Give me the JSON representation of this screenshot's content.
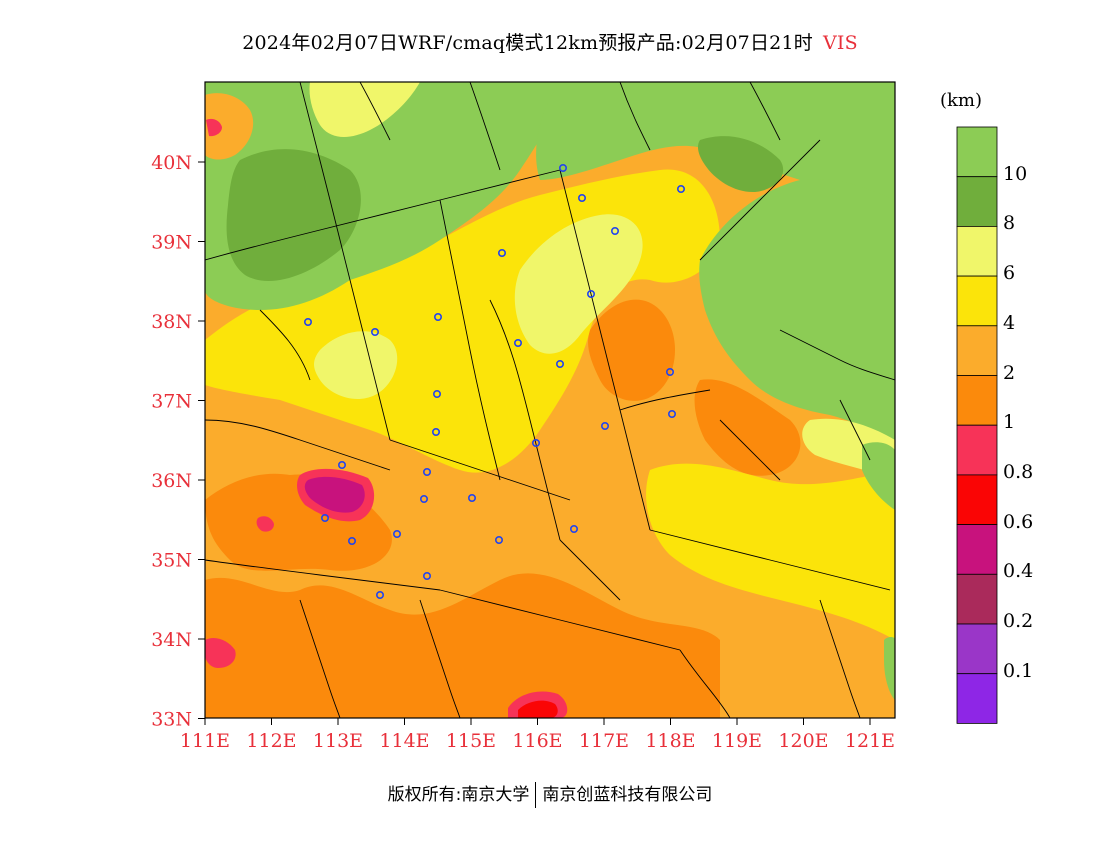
{
  "title": {
    "main": "2024年02月07日WRF/cmaq模式12km预报产品:02月07日21时",
    "variable": "VIS"
  },
  "unit": "(km)",
  "lat_labels": [
    "40N",
    "39N",
    "38N",
    "37N",
    "36N",
    "35N",
    "34N",
    "33N"
  ],
  "lon_labels": [
    "111E",
    "112E",
    "113E",
    "114E",
    "115E",
    "116E",
    "117E",
    "118E",
    "119E",
    "120E",
    "121E"
  ],
  "colorbar": {
    "labels": [
      "10",
      "8",
      "6",
      "4",
      "2",
      "1",
      "0.8",
      "0.6",
      "0.4",
      "0.2",
      "0.1"
    ],
    "colors": [
      "#8ccc55",
      "#70ae3c",
      "#f0f66a",
      "#fbe40a",
      "#fbac2c",
      "#fb8a0c",
      "#f73358",
      "#fa0505",
      "#c8127d",
      "#aa2a5b",
      "#9a36c8",
      "#8e26e6"
    ]
  },
  "colors": {
    "ocean_green": "#8ccc55",
    "dark_green": "#70ae3c",
    "light_yellow": "#f0f66a",
    "yellow": "#fbe40a",
    "light_orange": "#fbac2c",
    "orange": "#fb8a0c",
    "pink": "#f73358",
    "red": "#fa0505",
    "magenta": "#c8127d",
    "axis_label": "#e8303a",
    "station_marker": "#2244ee"
  },
  "footer": {
    "left": "版权所有:南京大学",
    "right": "南京创蓝科技有限公司"
  }
}
